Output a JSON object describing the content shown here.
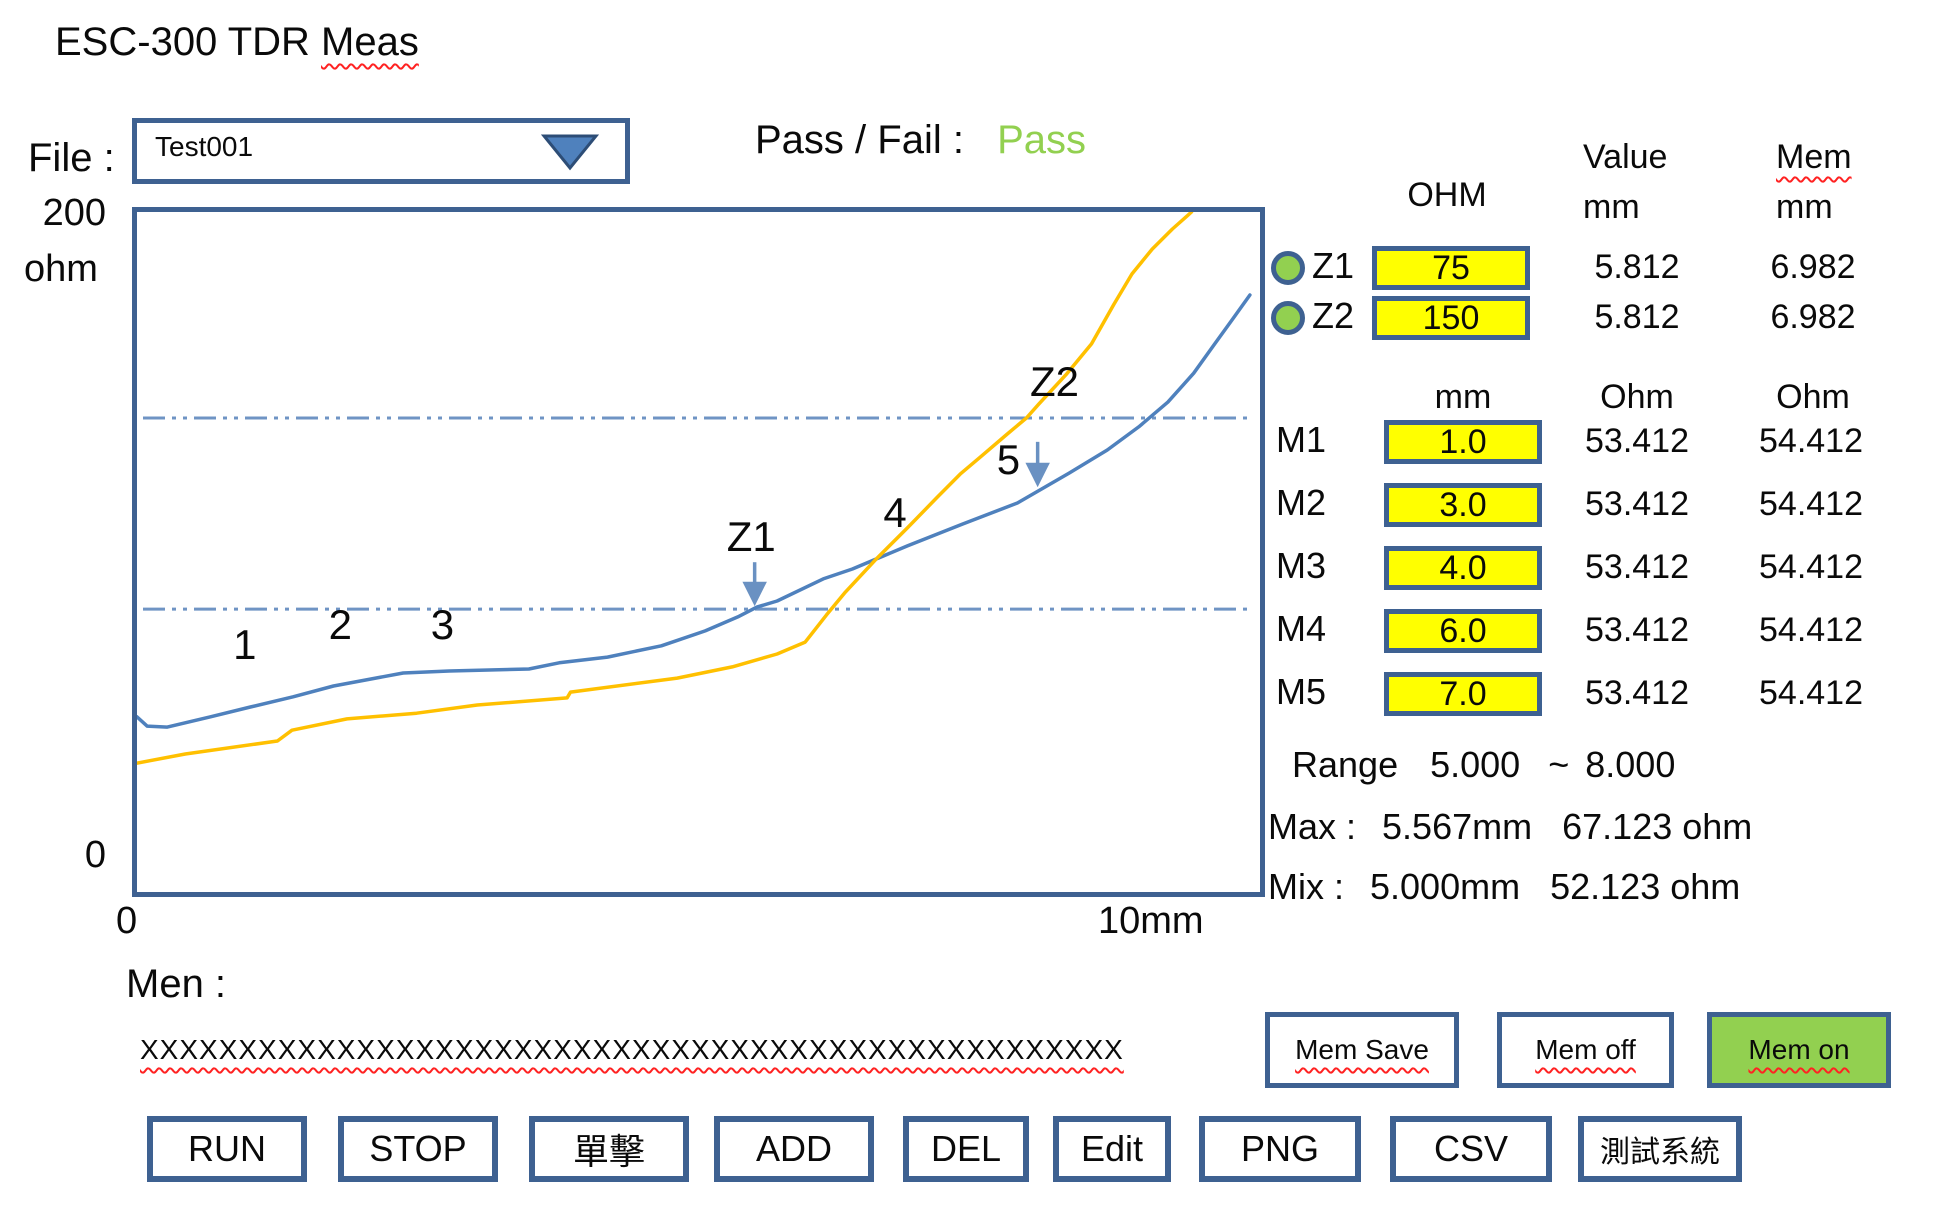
{
  "title": {
    "prefix": "ESC-300  TDR ",
    "squiggle_word": "Meas"
  },
  "file": {
    "label": "File :",
    "value": "Test001"
  },
  "pass_fail": {
    "label": "Pass / Fail :",
    "value": "Pass"
  },
  "axes": {
    "y_max": "200",
    "y_unit": "ohm",
    "y_min": "0",
    "x_min": "0",
    "x_max": "10mm"
  },
  "panel": {
    "headers": {
      "ohm": "OHM",
      "value_line1": "Value",
      "value_line2": "mm",
      "mem_line1": "Mem",
      "mem_line2": "mm"
    },
    "unit_row": {
      "mm": "mm",
      "ohm_value": "Ohm",
      "ohm_mem": "Ohm"
    },
    "z_rows": [
      {
        "label": "Z1",
        "input": "75",
        "value": "5.812",
        "mem": "6.982"
      },
      {
        "label": "Z2",
        "input": "150",
        "value": "5.812",
        "mem": "6.982"
      }
    ],
    "m_rows": [
      {
        "label": "M1",
        "input": "1.0",
        "value": "53.412",
        "mem": "54.412"
      },
      {
        "label": "M2",
        "input": "3.0",
        "value": "53.412",
        "mem": "54.412"
      },
      {
        "label": "M3",
        "input": "4.0",
        "value": "53.412",
        "mem": "54.412"
      },
      {
        "label": "M4",
        "input": "6.0",
        "value": "53.412",
        "mem": "54.412"
      },
      {
        "label": "M5",
        "input": "7.0",
        "value": "53.412",
        "mem": "54.412"
      }
    ],
    "range": {
      "label": "Range",
      "from": "5.000",
      "tilde": "~",
      "to": "8.000"
    },
    "max_line": {
      "label": "Max :",
      "mm": "5.567mm",
      "ohm": "67.123 ohm"
    },
    "mix_line": {
      "label": "Mix  :",
      "mm": "5.000mm",
      "ohm": "52.123 ohm"
    }
  },
  "men": {
    "label": "Men :",
    "value": "XXXXXXXXXXXXXXXXXXXXXXXXXXXXXXXXXXXXXXXXXXXXXXXXXX"
  },
  "mem_buttons": [
    {
      "label": "Mem Save",
      "active": false
    },
    {
      "label": "Mem off",
      "active": false
    },
    {
      "label": "Mem on",
      "active": true
    }
  ],
  "action_buttons": [
    "RUN",
    "STOP",
    "單擊",
    "ADD",
    "DEL",
    "Edit",
    "PNG",
    "CSV",
    "測試系統"
  ],
  "colors": {
    "accent_border": "#3e6191",
    "curve_measured": "#4f81bd",
    "curve_memory": "#ffc000",
    "threshold_line": "#6f94c4",
    "arrow_blue": "#6a91c2",
    "pass_green": "#92d050",
    "input_yellow": "#ffff00",
    "mem_on_bg": "#92d050",
    "squiggle_red": "#ff2222"
  },
  "chart_data": {
    "type": "line",
    "title": "",
    "xlabel": "mm",
    "ylabel": "ohm",
    "xlim": [
      0,
      10
    ],
    "ylim": [
      0,
      200
    ],
    "grid": false,
    "legend": "none",
    "ref_lines": [
      {
        "ohm": 139.4,
        "style": "dash-dot-dot"
      },
      {
        "ohm": 83.2,
        "style": "dash-dot-dot"
      }
    ],
    "series": [
      {
        "name": "measured-trace",
        "color": "#4f81bd",
        "x": [
          0,
          0.09,
          0.27,
          0.65,
          1.01,
          1.39,
          1.75,
          2.37,
          2.78,
          3.49,
          3.76,
          4.19,
          4.67,
          5.06,
          5.35,
          5.52,
          5.7,
          6.11,
          6.37,
          6.86,
          7.35,
          7.84,
          8.3,
          8.64,
          8.92,
          9.18,
          9.41,
          9.59,
          9.75,
          9.91
        ],
        "y": [
          51.5,
          48.8,
          48.5,
          51.5,
          54.4,
          57.4,
          60.6,
          64.4,
          65.0,
          65.6,
          67.4,
          69.1,
          72.4,
          76.8,
          80.9,
          83.8,
          85.6,
          92.1,
          95.0,
          101.8,
          108.2,
          114.4,
          123.2,
          130.0,
          136.8,
          144.1,
          152.6,
          160.9,
          168.2,
          175.6
        ]
      },
      {
        "name": "memory-trace",
        "color": "#ffc000",
        "x": [
          0,
          0.43,
          1.25,
          1.38,
          1.87,
          2.49,
          3.03,
          3.83,
          3.86,
          4.81,
          5.3,
          5.7,
          5.95,
          6.14,
          6.3,
          6.59,
          6.86,
          7.12,
          7.33,
          7.52,
          7.75,
          7.92,
          8.03,
          8.28,
          8.5,
          8.7,
          8.86,
          9.04,
          9.22,
          9.35,
          9.39
        ],
        "y": [
          37.9,
          40.6,
          44.4,
          47.6,
          50.9,
          52.6,
          55.0,
          57.1,
          58.8,
          62.9,
          66.2,
          70.0,
          73.5,
          81.5,
          87.9,
          98.2,
          107.1,
          115.9,
          122.9,
          128.2,
          134.7,
          139.4,
          143.5,
          152.4,
          161.2,
          172.9,
          181.8,
          189.1,
          195.0,
          198.8,
          200.0
        ]
      }
    ],
    "annotations": [
      {
        "text": "1",
        "x": 0.96,
        "y": 72.6
      },
      {
        "text": "2",
        "x": 1.81,
        "y": 78.5
      },
      {
        "text": "3",
        "x": 2.72,
        "y": 78.5
      },
      {
        "text": "Z1",
        "x": 5.47,
        "y": 104.4
      },
      {
        "text": "4",
        "x": 6.75,
        "y": 111.5
      },
      {
        "text": "5",
        "x": 7.76,
        "y": 127.1
      },
      {
        "text": "Z2",
        "x": 8.17,
        "y": 150.0
      }
    ],
    "arrows": [
      {
        "x": 5.5,
        "y_from": 97.0,
        "y_to": 85.5
      },
      {
        "x": 8.02,
        "y_from": 132.4,
        "y_to": 120.5
      }
    ]
  }
}
